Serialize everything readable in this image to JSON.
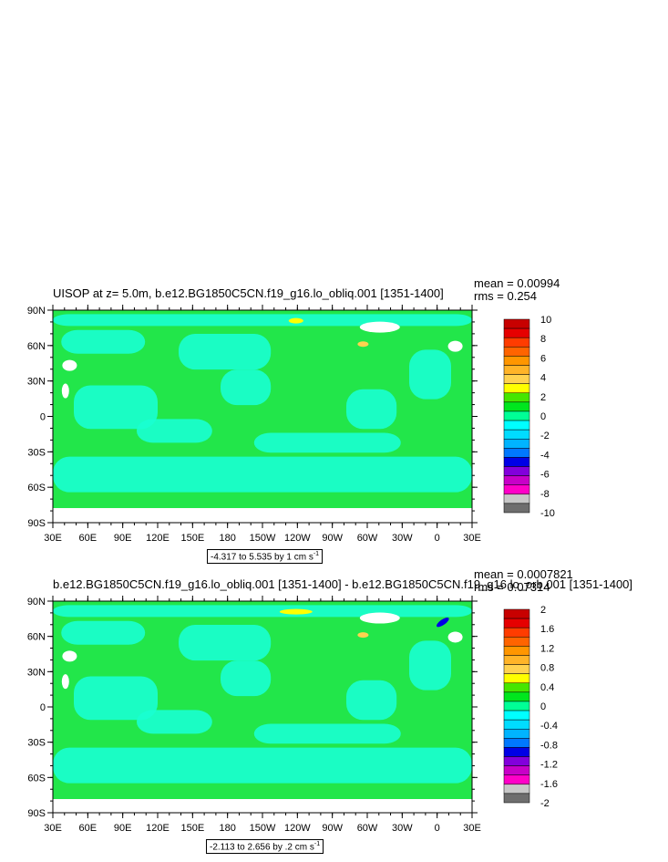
{
  "chart_data": [
    {
      "type": "heatmap",
      "title": "UISOP at z=   5.0m, b.e12.BG1850C5CN.f19_g16.lo_obliq.001 [1351-1400]",
      "stats": {
        "mean": "mean = 0.00994",
        "rms": "rms = 0.254"
      },
      "range_label": "-4.317 to 5.535 by 1 cm s",
      "range_unit_exp": "-1",
      "x_ticks": [
        "30E",
        "60E",
        "90E",
        "120E",
        "150E",
        "180",
        "150W",
        "120W",
        "90W",
        "60W",
        "30W",
        "0",
        "30E"
      ],
      "y_ticks": [
        "90N",
        "60N",
        "30N",
        "0",
        "30S",
        "60S",
        "90S"
      ],
      "colorbar_labels": [
        "10",
        "8",
        "6",
        "4",
        "2",
        "0",
        "-2",
        "-4",
        "-6",
        "-8",
        "-10"
      ],
      "colorbar_colors": [
        "#c80000",
        "#e60000",
        "#ff3c00",
        "#ff6400",
        "#ff9600",
        "#ffb428",
        "#ffd250",
        "#ffff00",
        "#46e600",
        "#00e61e",
        "#00ff96",
        "#00ffff",
        "#00dcff",
        "#00b4ff",
        "#0078ff",
        "#0000e6",
        "#8200dc",
        "#c800c8",
        "#ff00c8",
        "#c8c8c8",
        "#6e6e6e"
      ]
    },
    {
      "type": "heatmap",
      "title": "b.e12.BG1850C5CN.f19_g16.lo_obliq.001 [1351-1400] - b.e12.BG1850C5CN.f19_g16.lo_orb.001 [1351-1400]",
      "stats": {
        "mean": "mean = 0.0007821",
        "rms": "rms = 0.07314"
      },
      "range_label": "-2.113 to 2.656 by .2 cm s",
      "range_unit_exp": "-1",
      "x_ticks": [
        "30E",
        "60E",
        "90E",
        "120E",
        "150E",
        "180",
        "150W",
        "120W",
        "90W",
        "60W",
        "30W",
        "0",
        "30E"
      ],
      "y_ticks": [
        "90N",
        "60N",
        "30N",
        "0",
        "30S",
        "60S",
        "90S"
      ],
      "colorbar_labels": [
        "2",
        "1.6",
        "1.2",
        "0.8",
        "0.4",
        "0",
        "-0.4",
        "-0.8",
        "-1.2",
        "-1.6",
        "-2"
      ],
      "colorbar_colors": [
        "#c80000",
        "#e60000",
        "#ff3c00",
        "#ff6400",
        "#ff9600",
        "#ffb428",
        "#ffd250",
        "#ffff00",
        "#46e600",
        "#00e61e",
        "#00ff96",
        "#00ffff",
        "#00dcff",
        "#00b4ff",
        "#0078ff",
        "#0000e6",
        "#8200dc",
        "#c800c8",
        "#ff00c8",
        "#c8c8c8",
        "#6e6e6e"
      ]
    }
  ],
  "colors": {
    "ocean_green": "#22e64a",
    "ocean_cyan": "#19ffd2",
    "land": "#ffffff"
  }
}
